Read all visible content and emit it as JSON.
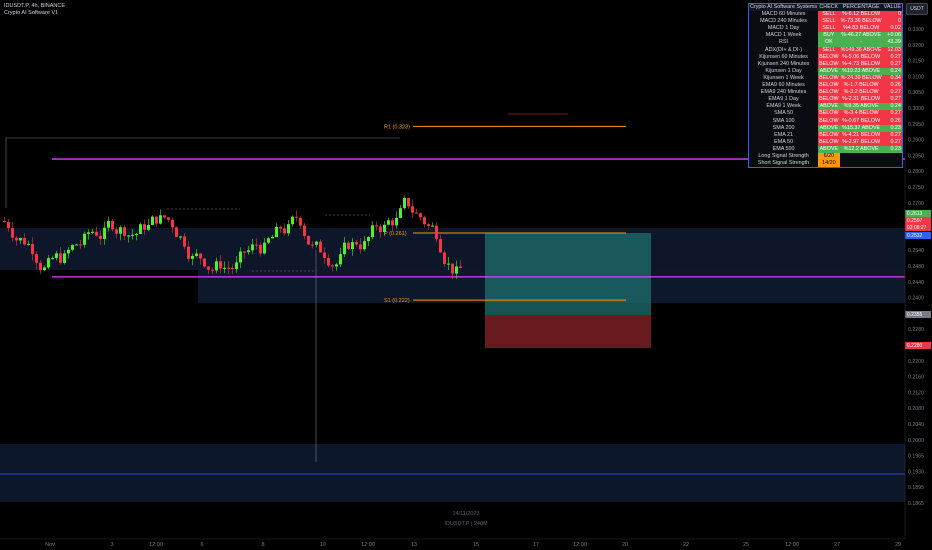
{
  "header": {
    "symbol_line": "IDUSDT.P, 4h, BINANCE",
    "indicator_name": "Crypto AI Software V1",
    "currency_button": "USDT"
  },
  "table": {
    "headers": [
      "Crypto AI Software Systems",
      "CHECK",
      "PERCENTAGE",
      "VALUE"
    ],
    "rows": [
      {
        "name": "MACD 60 Minutes",
        "check": "SELL",
        "pct": "%-6.12 BELOW",
        "value": "0",
        "color": "#f23645"
      },
      {
        "name": "MACD 240 Minutes",
        "check": "SELL",
        "pct": "%-73.36 BELOW",
        "value": "0",
        "color": "#f23645"
      },
      {
        "name": "MACD 1 Day",
        "check": "SELL",
        "pct": "%4.83 BELOW",
        "value": "0.02",
        "color": "#f23645"
      },
      {
        "name": "MACD 1 Week",
        "check": "BUY",
        "pct": "%-46.27 ABOVE",
        "value": "+0.06",
        "color": "#4caf50"
      },
      {
        "name": "RSI",
        "check": "OK",
        "pct": "-",
        "value": "43.39",
        "color": "#4caf50"
      },
      {
        "name": "ADX(DI+ & DI-)",
        "check": "SELL",
        "pct": "%149.36 ABOVE",
        "value": "12.03",
        "color": "#f23645"
      },
      {
        "name": "Kijunsen 60 Minutes",
        "check": "BELOW",
        "pct": "%-5.06 BELOW",
        "value": "0.27",
        "color": "#f23645"
      },
      {
        "name": "Kijunsen 240 Minutes",
        "check": "BELOW",
        "pct": "%-4.73 BELOW",
        "value": "0.27",
        "color": "#f23645"
      },
      {
        "name": "Kijunsen 1 Day",
        "check": "ABOVE",
        "pct": "%10.23 ABOVE",
        "value": "0.24",
        "color": "#4caf50"
      },
      {
        "name": "Kijunsen 1 Week",
        "check": "BELOW",
        "pct": "%-24.39 BELOW",
        "value": "0.34",
        "color": "#f23645"
      },
      {
        "name": "EMA9 60 Minutes",
        "check": "BELOW",
        "pct": "%-1.7 BELOW",
        "value": "0.26",
        "color": "#f23645"
      },
      {
        "name": "EMA9 240 Minutes",
        "check": "BELOW",
        "pct": "%-3.2 BELOW",
        "value": "0.27",
        "color": "#f23645"
      },
      {
        "name": "EMA9 1 Day",
        "check": "BELOW",
        "pct": "%-2.31 BELOW",
        "value": "0.27",
        "color": "#f23645"
      },
      {
        "name": "EMA9 1 Week",
        "check": "ABOVE",
        "pct": "%9.35 ABOVE",
        "value": "0.24",
        "color": "#4caf50"
      },
      {
        "name": "SMA 50",
        "check": "BELOW",
        "pct": "%-3.4 BELOW",
        "value": "0.27",
        "color": "#f23645"
      },
      {
        "name": "SMA 100",
        "check": "BELOW",
        "pct": "%-0.67 BELOW",
        "value": "0.26",
        "color": "#f23645"
      },
      {
        "name": "SMA 200",
        "check": "ABOVE",
        "pct": "%15.37 ABOVE",
        "value": "0.23",
        "color": "#4caf50"
      },
      {
        "name": "EMA 21",
        "check": "BELOW",
        "pct": "%-4.21 BELOW",
        "value": "0.27",
        "color": "#f23645"
      },
      {
        "name": "EMA 50",
        "check": "BELOW",
        "pct": "%-2.97 BELOW",
        "value": "0.27",
        "color": "#f23645"
      },
      {
        "name": "EMA 500",
        "check": "ABOVE",
        "pct": "%12.2 ABOVE",
        "value": "0.23",
        "color": "#4caf50"
      },
      {
        "name": "Long Signal Strength",
        "check": "6/20",
        "pct": "",
        "value": "",
        "color": "#ff9800"
      },
      {
        "name": "Short Signal Strength",
        "check": "14/20",
        "pct": "",
        "value": "",
        "color": "#ff9800"
      }
    ]
  },
  "levels": {
    "r1": "R1 (0.323)",
    "r1_price": 0.323,
    "p": "P (0.261)",
    "p_price": 0.261,
    "s1": "S1 (0.222)",
    "s1_price": 0.222,
    "magenta_upper": 0.304,
    "magenta_lower": 0.2355
  },
  "price_axis": {
    "ticks": [
      "0.3300",
      "0.3200",
      "0.3150",
      "0.3100",
      "0.3050",
      "0.3000",
      "0.2950",
      "0.2900",
      "0.2850",
      "0.2800",
      "0.2750",
      "0.2700",
      "0.2650",
      "0.2600",
      "0.2540",
      "0.2480",
      "0.2440",
      "0.2400",
      "0.2320",
      "0.2280",
      "0.2240",
      "0.2200",
      "0.2160",
      "0.2120",
      "0.2080",
      "0.2040",
      "0.2000",
      "0.1965",
      "0.1930",
      "0.1895",
      "0.1865"
    ],
    "badges": [
      {
        "text": "0.2613",
        "color": "#4caf50"
      },
      {
        "text": "0.2597",
        "color": "#f23645"
      },
      {
        "text": "02:08:27",
        "color": "#f23645"
      },
      {
        "text": "0.2532",
        "color": "#2962ff"
      },
      {
        "text": "0.2355",
        "color": "#787b86"
      },
      {
        "text": "0.2280",
        "color": "#f23645"
      }
    ]
  },
  "time_axis": [
    "Nov",
    "3",
    "12:00",
    "6",
    "8",
    "10",
    "12:00",
    "13",
    "15",
    "17",
    "12:00",
    "20",
    "22",
    "25",
    "12:00",
    "27",
    "29"
  ],
  "bottom": {
    "date": "14/11/2023",
    "symbol": "IDUSDT.P | 240M"
  },
  "colors": {
    "bull": "#4cf12a",
    "bear": "#f23645",
    "magenta": "#e040fb",
    "orange": "#ff9800"
  }
}
